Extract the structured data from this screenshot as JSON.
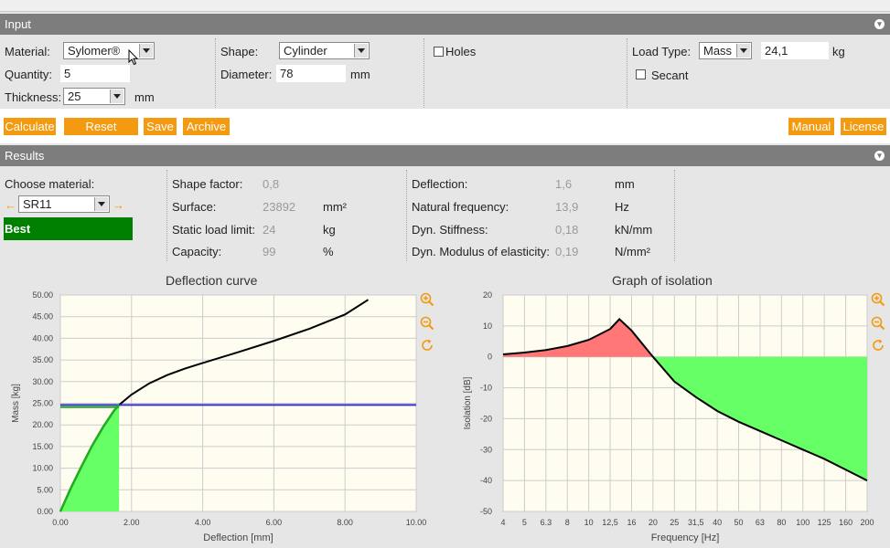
{
  "input_bar": {
    "title": "Input"
  },
  "results_bar": {
    "title": "Results"
  },
  "input": {
    "material_label": "Material:",
    "material_value": "Sylomer®",
    "quantity_label": "Quantity:",
    "quantity_value": "5",
    "thickness_label": "Thickness:",
    "thickness_value": "25",
    "thickness_unit": "mm",
    "shape_label": "Shape:",
    "shape_value": "Cylinder",
    "diameter_label": "Diameter:",
    "diameter_value": "78",
    "diameter_unit": "mm",
    "holes_label": "Holes",
    "load_type_label": "Load Type:",
    "load_type_value": "Mass",
    "load_value": "24,1",
    "load_unit": "kg",
    "secant_label": "Secant"
  },
  "buttons": {
    "calculate": "Calculate",
    "reset": "Reset",
    "save": "Save",
    "archive": "Archive",
    "manual": "Manual",
    "license": "License"
  },
  "results": {
    "choose_material_label": "Choose material:",
    "material_value": "SR11",
    "best_label": "Best",
    "shape_factor_label": "Shape factor:",
    "shape_factor_value": "0,8",
    "surface_label": "Surface:",
    "surface_value": "23892",
    "surface_unit": "mm²",
    "static_load_label": "Static load limit:",
    "static_load_value": "24",
    "static_load_unit": "kg",
    "capacity_label": "Capacity:",
    "capacity_value": "99",
    "capacity_unit": "%",
    "deflection_label": "Deflection:",
    "deflection_value": "1,6",
    "deflection_unit": "mm",
    "natfreq_label": "Natural frequency:",
    "natfreq_value": "13,9",
    "natfreq_unit": "Hz",
    "dynstiff_label": "Dyn. Stiffness:",
    "dynstiff_value": "0,18",
    "dynstiff_unit": "kN/mm",
    "dynmod_label": "Dyn. Modulus of elasticity:",
    "dynmod_value": "0,19",
    "dynmod_unit": "N/mm²"
  },
  "colors": {
    "accent": "#f39a11",
    "bar": "#7d7d7d",
    "best": "#008000"
  },
  "chart_data": [
    {
      "type": "line",
      "title": "Deflection curve",
      "xlabel": "Deflection [mm]",
      "ylabel": "Mass [kg]",
      "xlim": [
        0,
        10
      ],
      "ylim": [
        0,
        50
      ],
      "x_ticks": [
        "0.00",
        "2.00",
        "4.00",
        "6.00",
        "8.00",
        "10.00"
      ],
      "y_ticks": [
        "0.00",
        "5.00",
        "10.00",
        "15.00",
        "20.00",
        "25.00",
        "30.00",
        "35.00",
        "40.00",
        "45.00",
        "50.00"
      ],
      "grid": true,
      "series": [
        {
          "color": "#000000",
          "x": [
            0,
            0.3,
            0.6,
            0.9,
            1.2,
            1.5,
            1.65,
            2.0,
            2.5,
            3.0,
            3.5,
            4.0,
            5.0,
            6.0,
            7.0,
            8.0,
            8.65
          ],
          "y": [
            0,
            5.5,
            10.5,
            15.3,
            19.5,
            23.2,
            24.6,
            27.0,
            29.6,
            31.5,
            33.0,
            34.3,
            36.8,
            39.4,
            42.2,
            45.5,
            48.9
          ]
        },
        {
          "color": "#3333cc",
          "x": [
            0,
            10
          ],
          "y": [
            24.6,
            24.6
          ]
        },
        {
          "color": "#22aa22",
          "x": [
            0,
            1.65
          ],
          "y": [
            24.1,
            24.1
          ]
        }
      ],
      "fill_below": {
        "color": "#66ff66",
        "x_max": 1.65
      }
    },
    {
      "type": "area",
      "title": "Graph of isolation",
      "xlabel": "Frequency [Hz]",
      "ylabel": "Isolation [dB]",
      "x_ticks": [
        "4",
        "5",
        "6.3",
        "8",
        "10",
        "12,5",
        "16",
        "20",
        "25",
        "31,5",
        "40",
        "50",
        "63",
        "80",
        "100",
        "125",
        "160",
        "200"
      ],
      "y_ticks": [
        "20",
        "10",
        "0",
        "-10",
        "-20",
        "-30",
        "-40",
        "-50"
      ],
      "ylim": [
        -50,
        20
      ],
      "grid": true,
      "x": [
        "4",
        "5",
        "6.3",
        "8",
        "10",
        "12,5",
        "13,9",
        "16",
        "20",
        "25",
        "31,5",
        "40",
        "50",
        "63",
        "80",
        "100",
        "125",
        "160",
        "200"
      ],
      "values": [
        0.8,
        1.4,
        2.2,
        3.5,
        5.5,
        9.0,
        12.2,
        8.5,
        0.0,
        -8.0,
        -13.0,
        -17.5,
        -21.0,
        -24.0,
        -27.0,
        -30.0,
        -33.0,
        -36.5,
        -40.0
      ],
      "positive_fill": "#ff7777",
      "negative_fill": "#66ff66"
    }
  ]
}
